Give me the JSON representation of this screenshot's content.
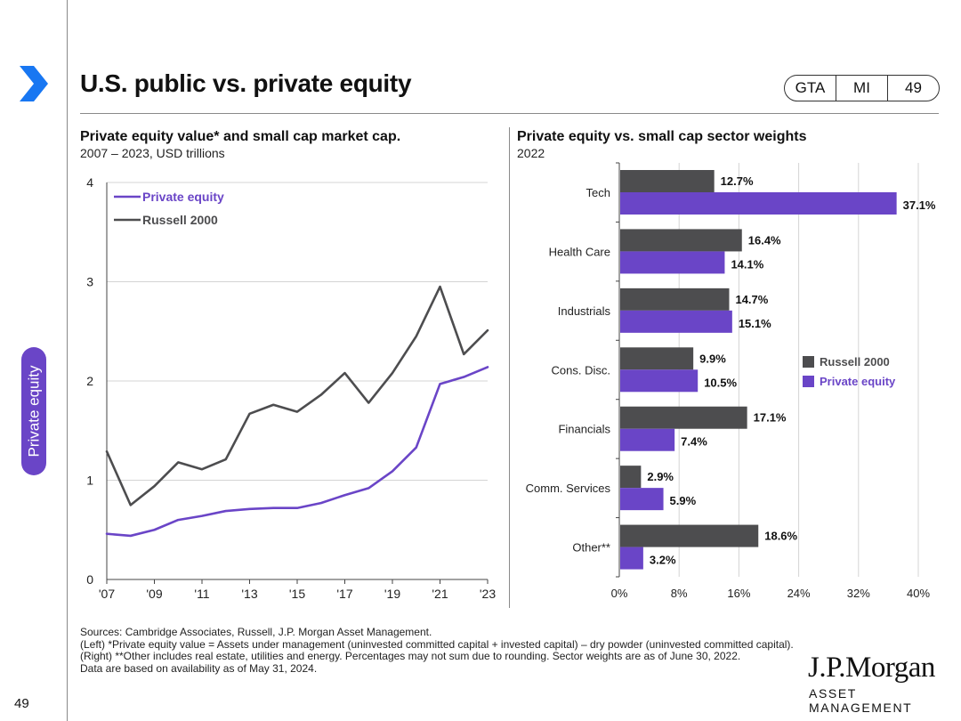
{
  "header": {
    "title": "U.S. public vs. private equity",
    "badges": [
      "GTA",
      "MI",
      "49"
    ]
  },
  "side_tab": {
    "label": "Private equity"
  },
  "page_number": "49",
  "colors": {
    "purple": "#6a45c7",
    "gray": "#4d4d4f",
    "accent": "#1877f2"
  },
  "left_chart": {
    "title": "Private equity value* and small cap market cap.",
    "subtitle": "2007 – 2023, USD trillions"
  },
  "right_chart": {
    "title": "Private equity vs. small cap sector weights",
    "subtitle": "2022"
  },
  "chart_data": [
    {
      "type": "line",
      "x": [
        2007,
        2008,
        2009,
        2010,
        2011,
        2012,
        2013,
        2014,
        2015,
        2016,
        2017,
        2018,
        2019,
        2020,
        2021,
        2022,
        2023
      ],
      "xticks": [
        "'07",
        "'09",
        "'11",
        "'13",
        "'15",
        "'17",
        "'19",
        "'21",
        "'23"
      ],
      "xtick_values": [
        2007,
        2009,
        2011,
        2013,
        2015,
        2017,
        2019,
        2021,
        2023
      ],
      "yticks": [
        "0",
        "1",
        "2",
        "3",
        "4"
      ],
      "ylim": [
        0,
        4
      ],
      "series": [
        {
          "name": "Private equity",
          "color": "#6a45c7",
          "values": [
            0.46,
            0.44,
            0.5,
            0.6,
            0.64,
            0.69,
            0.71,
            0.72,
            0.72,
            0.77,
            0.85,
            0.92,
            1.09,
            1.33,
            1.97,
            2.04,
            2.14
          ]
        },
        {
          "name": "Russell 2000",
          "color": "#4d4d4f",
          "values": [
            1.29,
            0.75,
            0.94,
            1.18,
            1.11,
            1.21,
            1.67,
            1.76,
            1.69,
            1.86,
            2.08,
            1.78,
            2.08,
            2.45,
            2.95,
            2.27,
            2.51
          ]
        }
      ],
      "legend": "top-left"
    },
    {
      "type": "bar",
      "orientation": "horizontal",
      "categories": [
        "Tech",
        "Health Care",
        "Industrials",
        "Cons. Disc.",
        "Financials",
        "Comm. Services",
        "Other**"
      ],
      "xticks": [
        "0%",
        "8%",
        "16%",
        "24%",
        "32%",
        "40%"
      ],
      "xlim": [
        0,
        40
      ],
      "series": [
        {
          "name": "Russell 2000",
          "color": "#4d4d4f",
          "values": [
            12.7,
            16.4,
            14.7,
            9.9,
            17.1,
            2.9,
            18.6
          ],
          "labels": [
            "12.7%",
            "16.4%",
            "14.7%",
            "9.9%",
            "17.1%",
            "2.9%",
            "18.6%"
          ]
        },
        {
          "name": "Private equity",
          "color": "#6a45c7",
          "values": [
            37.1,
            14.1,
            15.1,
            10.5,
            7.4,
            5.9,
            3.2
          ],
          "labels": [
            "37.1%",
            "14.1%",
            "15.1%",
            "10.5%",
            "7.4%",
            "5.9%",
            "3.2%"
          ]
        }
      ],
      "legend": "right"
    }
  ],
  "footnotes": {
    "sources": "Sources: Cambridge Associates, Russell, J.P. Morgan Asset Management.",
    "note": "(Left) *Private equity value = Assets under management (uninvested committed capital + invested capital) – dry powder (uninvested committed capital). (Right) **Other includes real estate, utilities and energy. Percentages may not sum due to rounding. Sector weights are as of June 30, 2022.",
    "availability": "Data are based on availability as of May 31, 2024."
  },
  "logo": {
    "name": "J.P.Morgan",
    "sub": "ASSET MANAGEMENT"
  }
}
